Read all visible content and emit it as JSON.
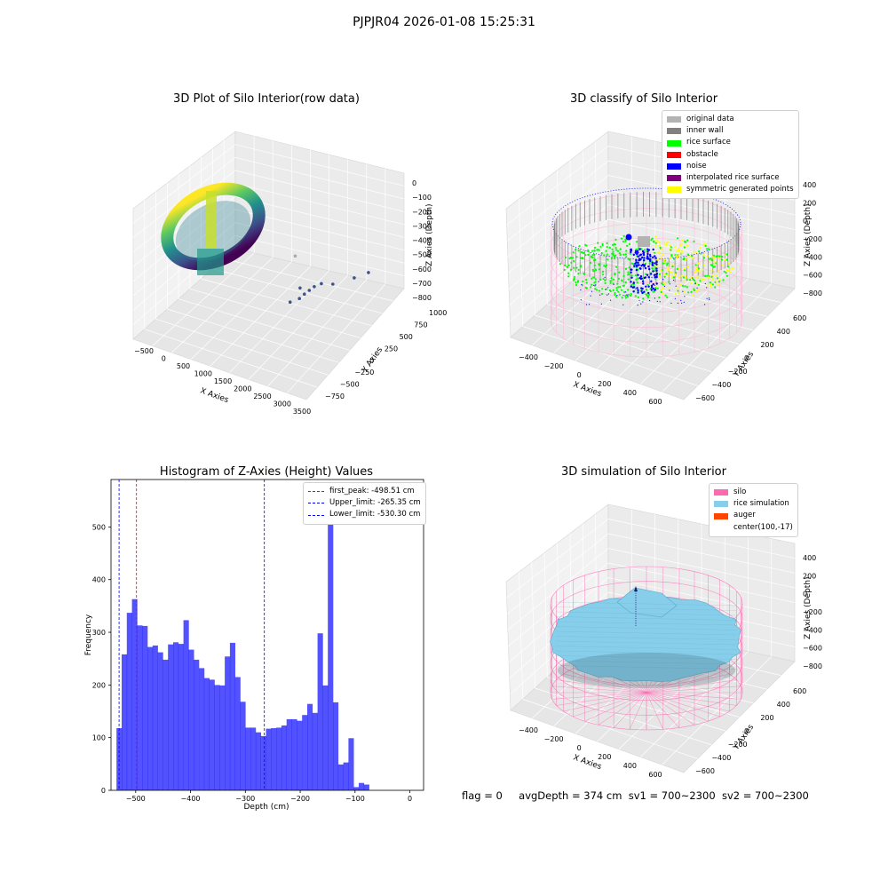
{
  "suptitle": "PJPJR04 2026-01-08 15:25:31",
  "footer": {
    "flag": "flag = 0",
    "avg_depth": "avgDepth = 374 cm",
    "sv1": "sv1 = 700~2300",
    "sv2": "sv2 = 700~2300"
  },
  "chart_data": [
    {
      "type": "scatter",
      "projection": "3d",
      "title": "3D Plot of Silo Interior(row data)",
      "xlabel": "X Axies",
      "ylabel": "Y Axies",
      "zlabel": "Z Axies (Depth)",
      "x_ticks": [
        "−500",
        "0",
        "500",
        "1000",
        "1500",
        "2000",
        "2500",
        "3000",
        "3500"
      ],
      "y_ticks": [
        "−750",
        "−500",
        "−250",
        "0",
        "250",
        "500",
        "750",
        "1000"
      ],
      "z_ticks": [
        "0",
        "−100",
        "−200",
        "−300",
        "−400",
        "−500",
        "−600",
        "−700",
        "−800"
      ],
      "colormap": "viridis",
      "outlier_points": [
        {
          "x": 1900,
          "y": 200,
          "z": -470
        },
        {
          "x": 2050,
          "y": 250,
          "z": -430
        },
        {
          "x": 2100,
          "y": 300,
          "z": -400
        },
        {
          "x": 2150,
          "y": 350,
          "z": -380
        },
        {
          "x": 2200,
          "y": 400,
          "z": -360
        },
        {
          "x": 2300,
          "y": 450,
          "z": -340
        },
        {
          "x": 2500,
          "y": 500,
          "z": -350
        },
        {
          "x": 2800,
          "y": 650,
          "z": -330
        },
        {
          "x": 3000,
          "y": 750,
          "z": -300
        },
        {
          "x": 2000,
          "y": 300,
          "z": -330
        },
        {
          "x": 1500,
          "y": 600,
          "z": -250
        }
      ]
    },
    {
      "type": "scatter",
      "projection": "3d",
      "title": "3D classify of Silo Interior",
      "xlabel": "X Axies",
      "ylabel": "Y Axies",
      "zlabel": "Z Axies (Depth)",
      "x_ticks": [
        "−400",
        "−200",
        "0",
        "200",
        "400",
        "600"
      ],
      "y_ticks": [
        "−600",
        "−400",
        "−200",
        "0",
        "200",
        "400",
        "600"
      ],
      "z_ticks": [
        "400",
        "200",
        "0",
        "−200",
        "−400",
        "−600",
        "−800"
      ],
      "legend": [
        {
          "label": "original data",
          "color": "#b3b3b3"
        },
        {
          "label": "inner wall",
          "color": "#808080"
        },
        {
          "label": "rice surface",
          "color": "#00ff00"
        },
        {
          "label": "obstacle",
          "color": "#ff0000"
        },
        {
          "label": "noise",
          "color": "#0000ff"
        },
        {
          "label": "interpolated rice surface",
          "color": "#800080"
        },
        {
          "label": "symmetric generated points",
          "color": "#ffff00"
        }
      ]
    },
    {
      "type": "bar",
      "title": "Histogram of Z-Axies (Height) Values",
      "xlabel": "Depth (cm)",
      "ylabel": "Frequency",
      "xlim": [
        -545,
        25
      ],
      "ylim": [
        0,
        590
      ],
      "x_ticks": [
        -500,
        -400,
        -300,
        -200,
        -100,
        0
      ],
      "y_ticks": [
        0,
        100,
        200,
        300,
        400,
        500
      ],
      "bar_color": "#0000ff",
      "bin_start": -535,
      "bin_width": 9.4,
      "values": [
        118,
        258,
        337,
        363,
        313,
        312,
        272,
        275,
        262,
        248,
        277,
        281,
        278,
        323,
        267,
        248,
        232,
        213,
        210,
        200,
        199,
        254,
        280,
        215,
        168,
        119,
        119,
        110,
        103,
        117,
        118,
        119,
        123,
        135,
        135,
        132,
        143,
        164,
        147,
        298,
        199,
        565,
        167,
        49,
        53,
        99,
        6,
        14,
        11
      ],
      "lines": [
        {
          "label": "first_peak: -498.51 cm",
          "x": -498.51,
          "color": "#ff0000"
        },
        {
          "label": "Upper_limit: -265.35 cm",
          "x": -265.35,
          "color": "#0000ff"
        },
        {
          "label": "Lower_limit: -530.30 cm",
          "x": -530.3,
          "color": "#0000ff"
        }
      ],
      "legend_position": "upper right"
    },
    {
      "type": "surface",
      "projection": "3d",
      "title": "3D simulation of Silo Interior",
      "xlabel": "X Axies",
      "ylabel": "Y Axies",
      "zlabel": "Z Axies (Depth)",
      "x_ticks": [
        "−400",
        "−200",
        "0",
        "200",
        "400",
        "600"
      ],
      "y_ticks": [
        "−600",
        "−400",
        "−200",
        "0",
        "200",
        "400",
        "600"
      ],
      "z_ticks": [
        "400",
        "200",
        "0",
        "−200",
        "−400",
        "−600",
        "−800"
      ],
      "legend": [
        {
          "label": "silo",
          "color": "#ff69b4"
        },
        {
          "label": "rice simulation",
          "color": "#87ceeb"
        },
        {
          "label": "auger",
          "color": "#ff4500"
        },
        {
          "label": "center(100,-17)",
          "color": ""
        }
      ]
    }
  ]
}
